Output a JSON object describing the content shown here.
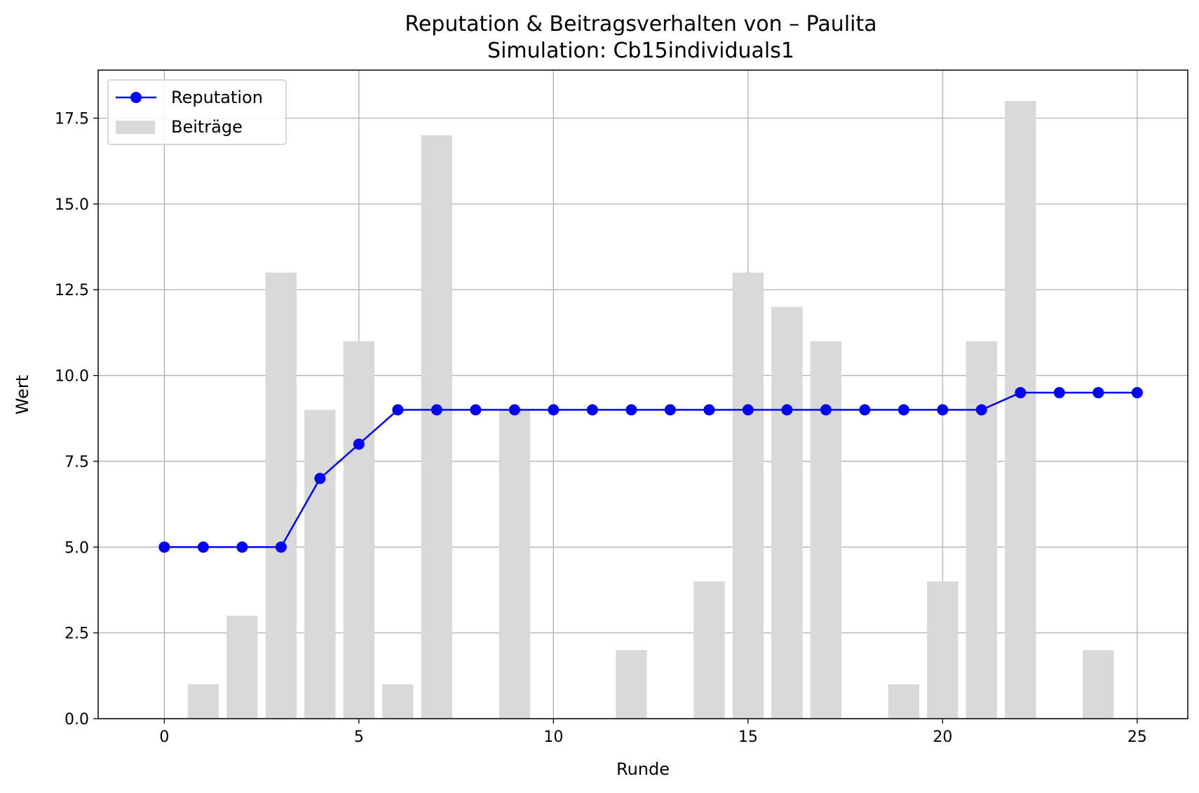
{
  "chart_data": {
    "type": "bar+line",
    "title": "Reputation & Beitragsverhalten von – Paulita",
    "subtitle": "Simulation: Cb15individuals1",
    "xlabel": "Runde",
    "ylabel": "Wert",
    "xlim": [
      -1.7,
      26.3
    ],
    "ylim": [
      0,
      18.9
    ],
    "xticks": [
      0,
      5,
      10,
      15,
      20,
      25
    ],
    "xtick_labels": [
      "0",
      "5",
      "10",
      "15",
      "20",
      "25"
    ],
    "yticks": [
      0,
      2.5,
      5,
      7.5,
      10,
      12.5,
      15,
      17.5
    ],
    "ytick_labels": [
      "0.0",
      "2.5",
      "5.0",
      "7.5",
      "10.0",
      "12.5",
      "15.0",
      "17.5"
    ],
    "grid": true,
    "legend_position": "upper-left",
    "x": [
      0,
      1,
      2,
      3,
      4,
      5,
      6,
      7,
      8,
      9,
      10,
      11,
      12,
      13,
      14,
      15,
      16,
      17,
      18,
      19,
      20,
      21,
      22,
      23,
      24,
      25
    ],
    "series": [
      {
        "name": "Reputation",
        "type": "line",
        "color": "#0000ff",
        "values": [
          5,
          5,
          5,
          5,
          7,
          8,
          9,
          9,
          9,
          9,
          9,
          9,
          9,
          9,
          9,
          9,
          9,
          9,
          9,
          9,
          9,
          9,
          9.5,
          9.5,
          9.5,
          9.5
        ]
      },
      {
        "name": "Beiträge",
        "type": "bar",
        "color": "#d9d9d9",
        "values": [
          0,
          1,
          3,
          13,
          9,
          11,
          1,
          17,
          0,
          9,
          0,
          0,
          2,
          0,
          4,
          13,
          12,
          11,
          0,
          1,
          4,
          11,
          18,
          0,
          2,
          0
        ]
      }
    ]
  }
}
